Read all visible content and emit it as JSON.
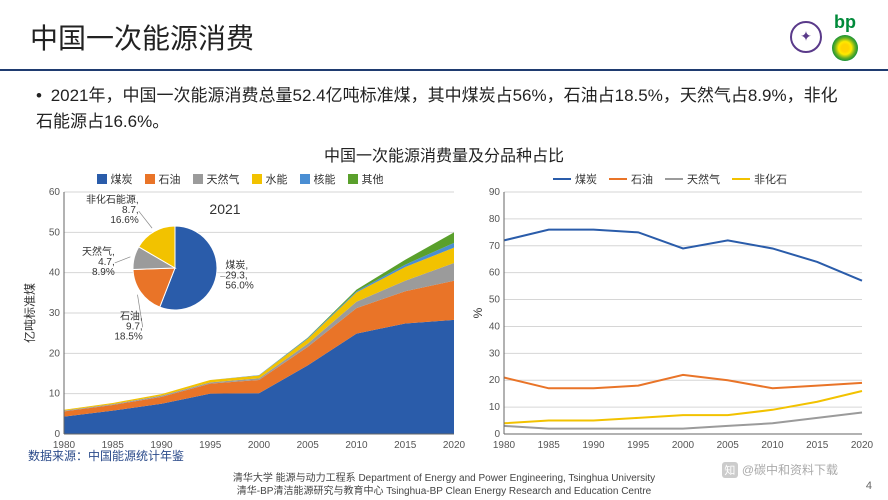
{
  "header": {
    "title": "中国一次能源消费",
    "bp_text": "bp"
  },
  "description": "2021年，中国一次能源消费总量52.4亿吨标准煤，其中煤炭占56%，石油占18.5%，天然气占8.9%，非化石能源占16.6%。",
  "chart_main_title": "中国一次能源消费量及分品种占比",
  "area_chart": {
    "type": "stacked_area",
    "ylabel": "亿吨标准煤",
    "ylim": [
      0,
      60
    ],
    "ytick_step": 10,
    "xlim": [
      1980,
      2020
    ],
    "xtick_step": 5,
    "years": [
      1980,
      1985,
      1990,
      1995,
      2000,
      2005,
      2010,
      2015,
      2020
    ],
    "legend": [
      {
        "label": "煤炭",
        "color": "#2a5caa"
      },
      {
        "label": "石油",
        "color": "#e97428"
      },
      {
        "label": "天然气",
        "color": "#9b9b9b"
      },
      {
        "label": "水能",
        "color": "#f2c200"
      },
      {
        "label": "核能",
        "color": "#4a8ed3"
      },
      {
        "label": "其他",
        "color": "#5aa02c"
      }
    ],
    "series": {
      "coal": [
        4.3,
        5.8,
        7.5,
        10.0,
        10.1,
        17.0,
        24.9,
        27.4,
        28.3
      ],
      "oil": [
        1.3,
        1.4,
        1.7,
        2.5,
        3.3,
        4.6,
        6.3,
        8.0,
        9.7
      ],
      "gas": [
        0.2,
        0.2,
        0.3,
        0.3,
        0.4,
        0.8,
        1.6,
        2.6,
        4.4
      ],
      "hydro": [
        0.2,
        0.3,
        0.4,
        0.6,
        0.7,
        1.2,
        2.3,
        3.4,
        3.8
      ],
      "nuclear": [
        0.0,
        0.0,
        0.0,
        0.0,
        0.1,
        0.2,
        0.3,
        0.6,
        1.2
      ],
      "other": [
        0.0,
        0.0,
        0.0,
        0.0,
        0.0,
        0.1,
        0.4,
        1.2,
        2.6
      ]
    },
    "grid_color": "#d6d6d6",
    "background_color": "#ffffff"
  },
  "pie_chart": {
    "title": "2021",
    "slices": [
      {
        "label": "煤炭",
        "value": 29.3,
        "pct": "56.0%",
        "color": "#2a5caa"
      },
      {
        "label": "石油",
        "value": 9.7,
        "pct": "18.5%",
        "color": "#e97428"
      },
      {
        "label": "天然气",
        "value": 4.7,
        "pct": "8.9%",
        "color": "#9b9b9b"
      },
      {
        "label": "非化石能源",
        "value": 8.7,
        "pct": "16.6%",
        "color": "#f2c200"
      }
    ]
  },
  "line_chart": {
    "type": "line",
    "ylabel": "%",
    "ylim": [
      0,
      90
    ],
    "ytick_step": 10,
    "xlim": [
      1980,
      2020
    ],
    "xtick_step": 5,
    "years": [
      1980,
      1985,
      1990,
      1995,
      2000,
      2005,
      2010,
      2015,
      2020
    ],
    "legend": [
      {
        "label": "煤炭",
        "color": "#2a5caa"
      },
      {
        "label": "石油",
        "color": "#e97428"
      },
      {
        "label": "天然气",
        "color": "#9b9b9b"
      },
      {
        "label": "非化石",
        "color": "#f2c200"
      }
    ],
    "series": {
      "coal": [
        72,
        76,
        76,
        75,
        69,
        72,
        69,
        64,
        57
      ],
      "oil": [
        21,
        17,
        17,
        18,
        22,
        20,
        17,
        18,
        19
      ],
      "gas": [
        3,
        2,
        2,
        2,
        2,
        3,
        4,
        6,
        8
      ],
      "nonfossil": [
        4,
        5,
        5,
        6,
        7,
        7,
        9,
        12,
        16
      ]
    },
    "line_width": 2,
    "grid_color": "#d6d6d6"
  },
  "source": "数据来源：中国能源统计年鉴",
  "footer_line1": "清华大学 能源与动力工程系 Department of Energy and Power Engineering, Tsinghua University",
  "footer_line2": "清华-BP清洁能源研究与教育中心 Tsinghua-BP Clean Energy Research and Education Centre",
  "pagenum": "4",
  "watermark": "@碳中和资料下载"
}
